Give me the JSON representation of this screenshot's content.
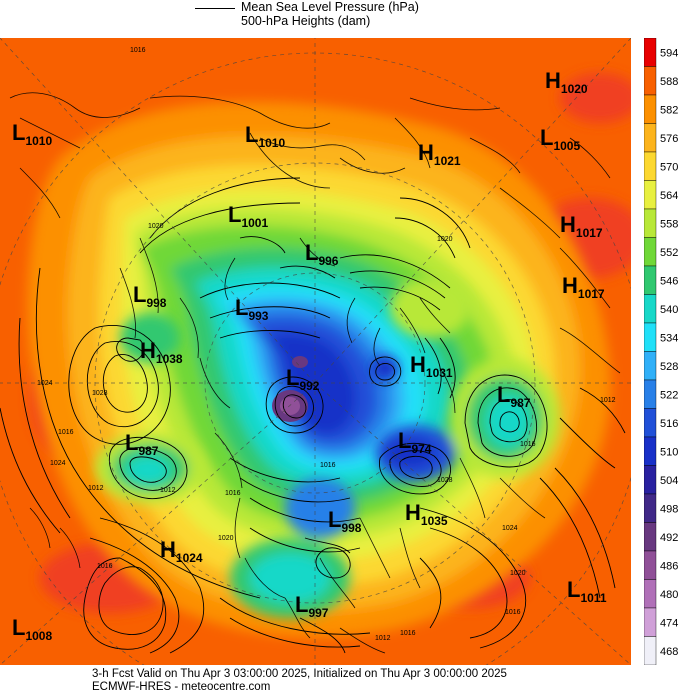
{
  "legend": {
    "line1": "Mean Sea Level Pressure (hPa)",
    "line2": "500-hPa Heights (dam)"
  },
  "colorbar": {
    "levels": [
      "594",
      "588",
      "582",
      "576",
      "570",
      "564",
      "558",
      "552",
      "546",
      "540",
      "534",
      "528",
      "522",
      "516",
      "510",
      "504",
      "498",
      "492",
      "486",
      "480",
      "474",
      "468"
    ],
    "colors": [
      "#e80000",
      "#f86000",
      "#fc9000",
      "#fcb41c",
      "#fcd830",
      "#e8f040",
      "#b8e838",
      "#70d838",
      "#30c870",
      "#18d8c8",
      "#20e0f8",
      "#30b0f8",
      "#2880e8",
      "#2050d8",
      "#1830c8",
      "#2820a0",
      "#402888",
      "#683880",
      "#905098",
      "#b070b8",
      "#d0a0d8",
      "#f0f0f8"
    ]
  },
  "pressure_centers": [
    {
      "type": "L",
      "value": "1010"
    },
    {
      "type": "L",
      "value": "1010"
    },
    {
      "type": "H",
      "value": "1020"
    },
    {
      "type": "L",
      "value": "1005"
    },
    {
      "type": "H",
      "value": "1021"
    },
    {
      "type": "L",
      "value": "1001"
    },
    {
      "type": "H",
      "value": "1017"
    },
    {
      "type": "L",
      "value": "996"
    },
    {
      "type": "L",
      "value": "998"
    },
    {
      "type": "H",
      "value": "1017"
    },
    {
      "type": "L",
      "value": "993"
    },
    {
      "type": "H",
      "value": "1038"
    },
    {
      "type": "L",
      "value": "992"
    },
    {
      "type": "H",
      "value": "1031"
    },
    {
      "type": "L",
      "value": "987"
    },
    {
      "type": "L",
      "value": "987"
    },
    {
      "type": "L",
      "value": "974"
    },
    {
      "type": "L",
      "value": "998"
    },
    {
      "type": "H",
      "value": "1035"
    },
    {
      "type": "H",
      "value": "1024"
    },
    {
      "type": "L",
      "value": "1011"
    },
    {
      "type": "L",
      "value": "997"
    },
    {
      "type": "L",
      "value": "1008"
    }
  ],
  "isobar_labels": [
    "1016",
    "1020",
    "1024",
    "1028",
    "1024",
    "1016",
    "1012",
    "1012",
    "1016",
    "1020",
    "1028",
    "1020",
    "1016",
    "1016",
    "1012",
    "1016",
    "1024",
    "1020",
    "1016",
    "1012",
    "1016"
  ],
  "footer": {
    "line1": "3-h Fcst Valid on Thu Apr  3 03:00:00 2025, Initialized on Thu Apr  3 00:00:00 2025",
    "line2": "ECMWF-HRES  - meteocentre.com"
  }
}
